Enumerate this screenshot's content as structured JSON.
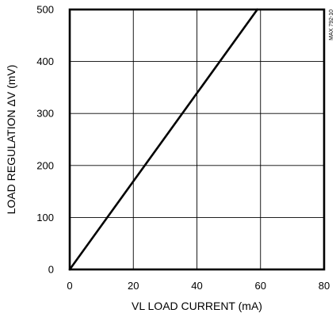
{
  "chart_data": {
    "type": "line",
    "title": "",
    "xlabel": "VL LOAD CURRENT (mA)",
    "ylabel": "LOAD REGULATION ΔV (mV)",
    "xlim": [
      0,
      80
    ],
    "ylim": [
      0,
      500
    ],
    "x_ticks": [
      0,
      20,
      40,
      60,
      80
    ],
    "y_ticks": [
      0,
      100,
      200,
      300,
      400,
      500
    ],
    "x_tick_labels": [
      "0",
      "20",
      "40",
      "60",
      "80"
    ],
    "y_tick_labels": [
      "0",
      "100",
      "200",
      "300",
      "400",
      "500"
    ],
    "grid": true,
    "series": [
      {
        "x": [
          0,
          59
        ],
        "y": [
          0,
          500
        ],
        "color": "#000000"
      }
    ],
    "annotations": [
      "MAX 792-10"
    ]
  }
}
